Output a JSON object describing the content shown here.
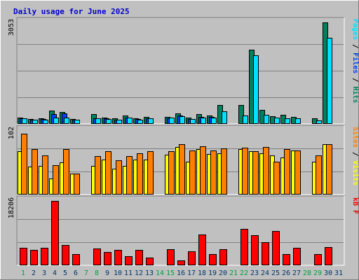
{
  "chart_data": {
    "type": "bar",
    "title": "Daily usage for June 2025",
    "colors": {
      "background": "#c0c0c0",
      "border_light": "#ffffff",
      "border_dark": "#808080",
      "title": "#0000cc",
      "grid": "#808080",
      "weekend_day": "#00a040",
      "weekday_day": "#003366",
      "hits": "#00805c",
      "files": "#0040ff",
      "pages": "#00e0ff",
      "visits": "#ffff00",
      "sites": "#ff8000",
      "kbytes": "#ff0000",
      "separator": "#000000"
    },
    "x": [
      "1",
      "2",
      "3",
      "4",
      "5",
      "6",
      "7",
      "8",
      "9",
      "10",
      "11",
      "12",
      "13",
      "14",
      "15",
      "16",
      "17",
      "18",
      "19",
      "20",
      "21",
      "22",
      "23",
      "24",
      "25",
      "26",
      "27",
      "28",
      "29",
      "30",
      "31"
    ],
    "weekend_days": [
      "1",
      "7",
      "8",
      "14",
      "15",
      "21",
      "22",
      "28",
      "29"
    ],
    "panels": [
      {
        "id": "hits-files-pages",
        "max_label": "3053",
        "ymax": 3053,
        "legend": [
          {
            "text": "Pages",
            "color": "pages"
          },
          {
            "text": " / ",
            "color": "separator"
          },
          {
            "text": "Files",
            "color": "files"
          },
          {
            "text": " / ",
            "color": "separator"
          },
          {
            "text": "Hits",
            "color": "hits"
          }
        ],
        "series": [
          {
            "name": "Hits",
            "color": "hits",
            "values": [
              180,
              130,
              150,
              390,
              340,
              130,
              0,
              270,
              180,
              150,
              240,
              150,
              190,
              0,
              200,
              300,
              170,
              280,
              240,
              560,
              0,
              550,
              2220,
              410,
              220,
              250,
              200,
              0,
              150,
              3053,
              0
            ]
          },
          {
            "name": "Files",
            "color": "files",
            "values": [
              150,
              110,
              120,
              280,
              300,
              110,
              0,
              150,
              150,
              110,
              160,
              120,
              150,
              0,
              150,
              240,
              130,
              200,
              190,
              0,
              0,
              0,
              0,
              0,
              0,
              0,
              0,
              0,
              0,
              0,
              0
            ]
          },
          {
            "name": "Pages",
            "color": "pages",
            "values": [
              140,
              110,
              110,
              180,
              180,
              100,
              0,
              150,
              130,
              100,
              170,
              100,
              150,
              0,
              170,
              210,
              120,
              170,
              170,
              350,
              0,
              240,
              2050,
              260,
              180,
              150,
              140,
              0,
              90,
              2580,
              0
            ]
          }
        ]
      },
      {
        "id": "visits-sites",
        "max_label": "102",
        "ymax": 102,
        "legend": [
          {
            "text": "Sites",
            "color": "sites"
          },
          {
            "text": " / ",
            "color": "separator"
          },
          {
            "text": "Visits",
            "color": "visits"
          }
        ],
        "series": [
          {
            "name": "Visits",
            "color": "visits",
            "values": [
              68,
              44,
              45,
              25,
              50,
              32,
              0,
              45,
              55,
              40,
              45,
              55,
              55,
              0,
              63,
              75,
              52,
              72,
              64,
              65,
              0,
              72,
              68,
              65,
              62,
              58,
              69,
              0,
              51,
              80,
              0
            ]
          },
          {
            "name": "Sites",
            "color": "sites",
            "values": [
              96,
              72,
              62,
              46,
              72,
              33,
              0,
              61,
              68,
              54,
              60,
              65,
              68,
              0,
              68,
              80,
              70,
              76,
              70,
              73,
              0,
              74,
              68,
              75,
              52,
              72,
              70,
              0,
              62,
              80,
              0
            ]
          }
        ]
      },
      {
        "id": "kbytes",
        "max_label": "18206",
        "ymax": 18206,
        "legend": [
          {
            "text": "kB F",
            "color": "kbytes"
          }
        ],
        "series": [
          {
            "name": "kB F",
            "color": "kbytes",
            "values": [
              4900,
              4200,
              4900,
              18206,
              5700,
              3000,
              0,
              4700,
              3700,
              4300,
              2500,
              4300,
              2100,
              0,
              4500,
              1300,
              3800,
              8600,
              3000,
              4500,
              0,
              10200,
              8500,
              6400,
              9700,
              3000,
              4800,
              0,
              3100,
              5100,
              0
            ]
          }
        ]
      }
    ]
  }
}
